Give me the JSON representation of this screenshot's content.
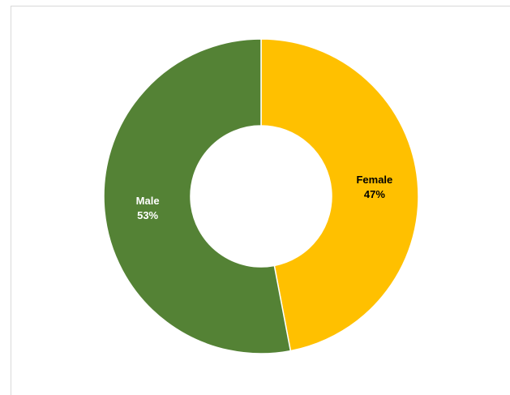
{
  "chart_data": {
    "type": "pie",
    "variant": "donut",
    "title": "",
    "legend": "none",
    "slices": [
      {
        "label": "Female",
        "value": 47,
        "display": "47%",
        "color": "#FFC000",
        "text_color": "#000000"
      },
      {
        "label": "Male",
        "value": 53,
        "display": "53%",
        "color": "#548235",
        "text_color": "#FFFFFF"
      }
    ]
  }
}
